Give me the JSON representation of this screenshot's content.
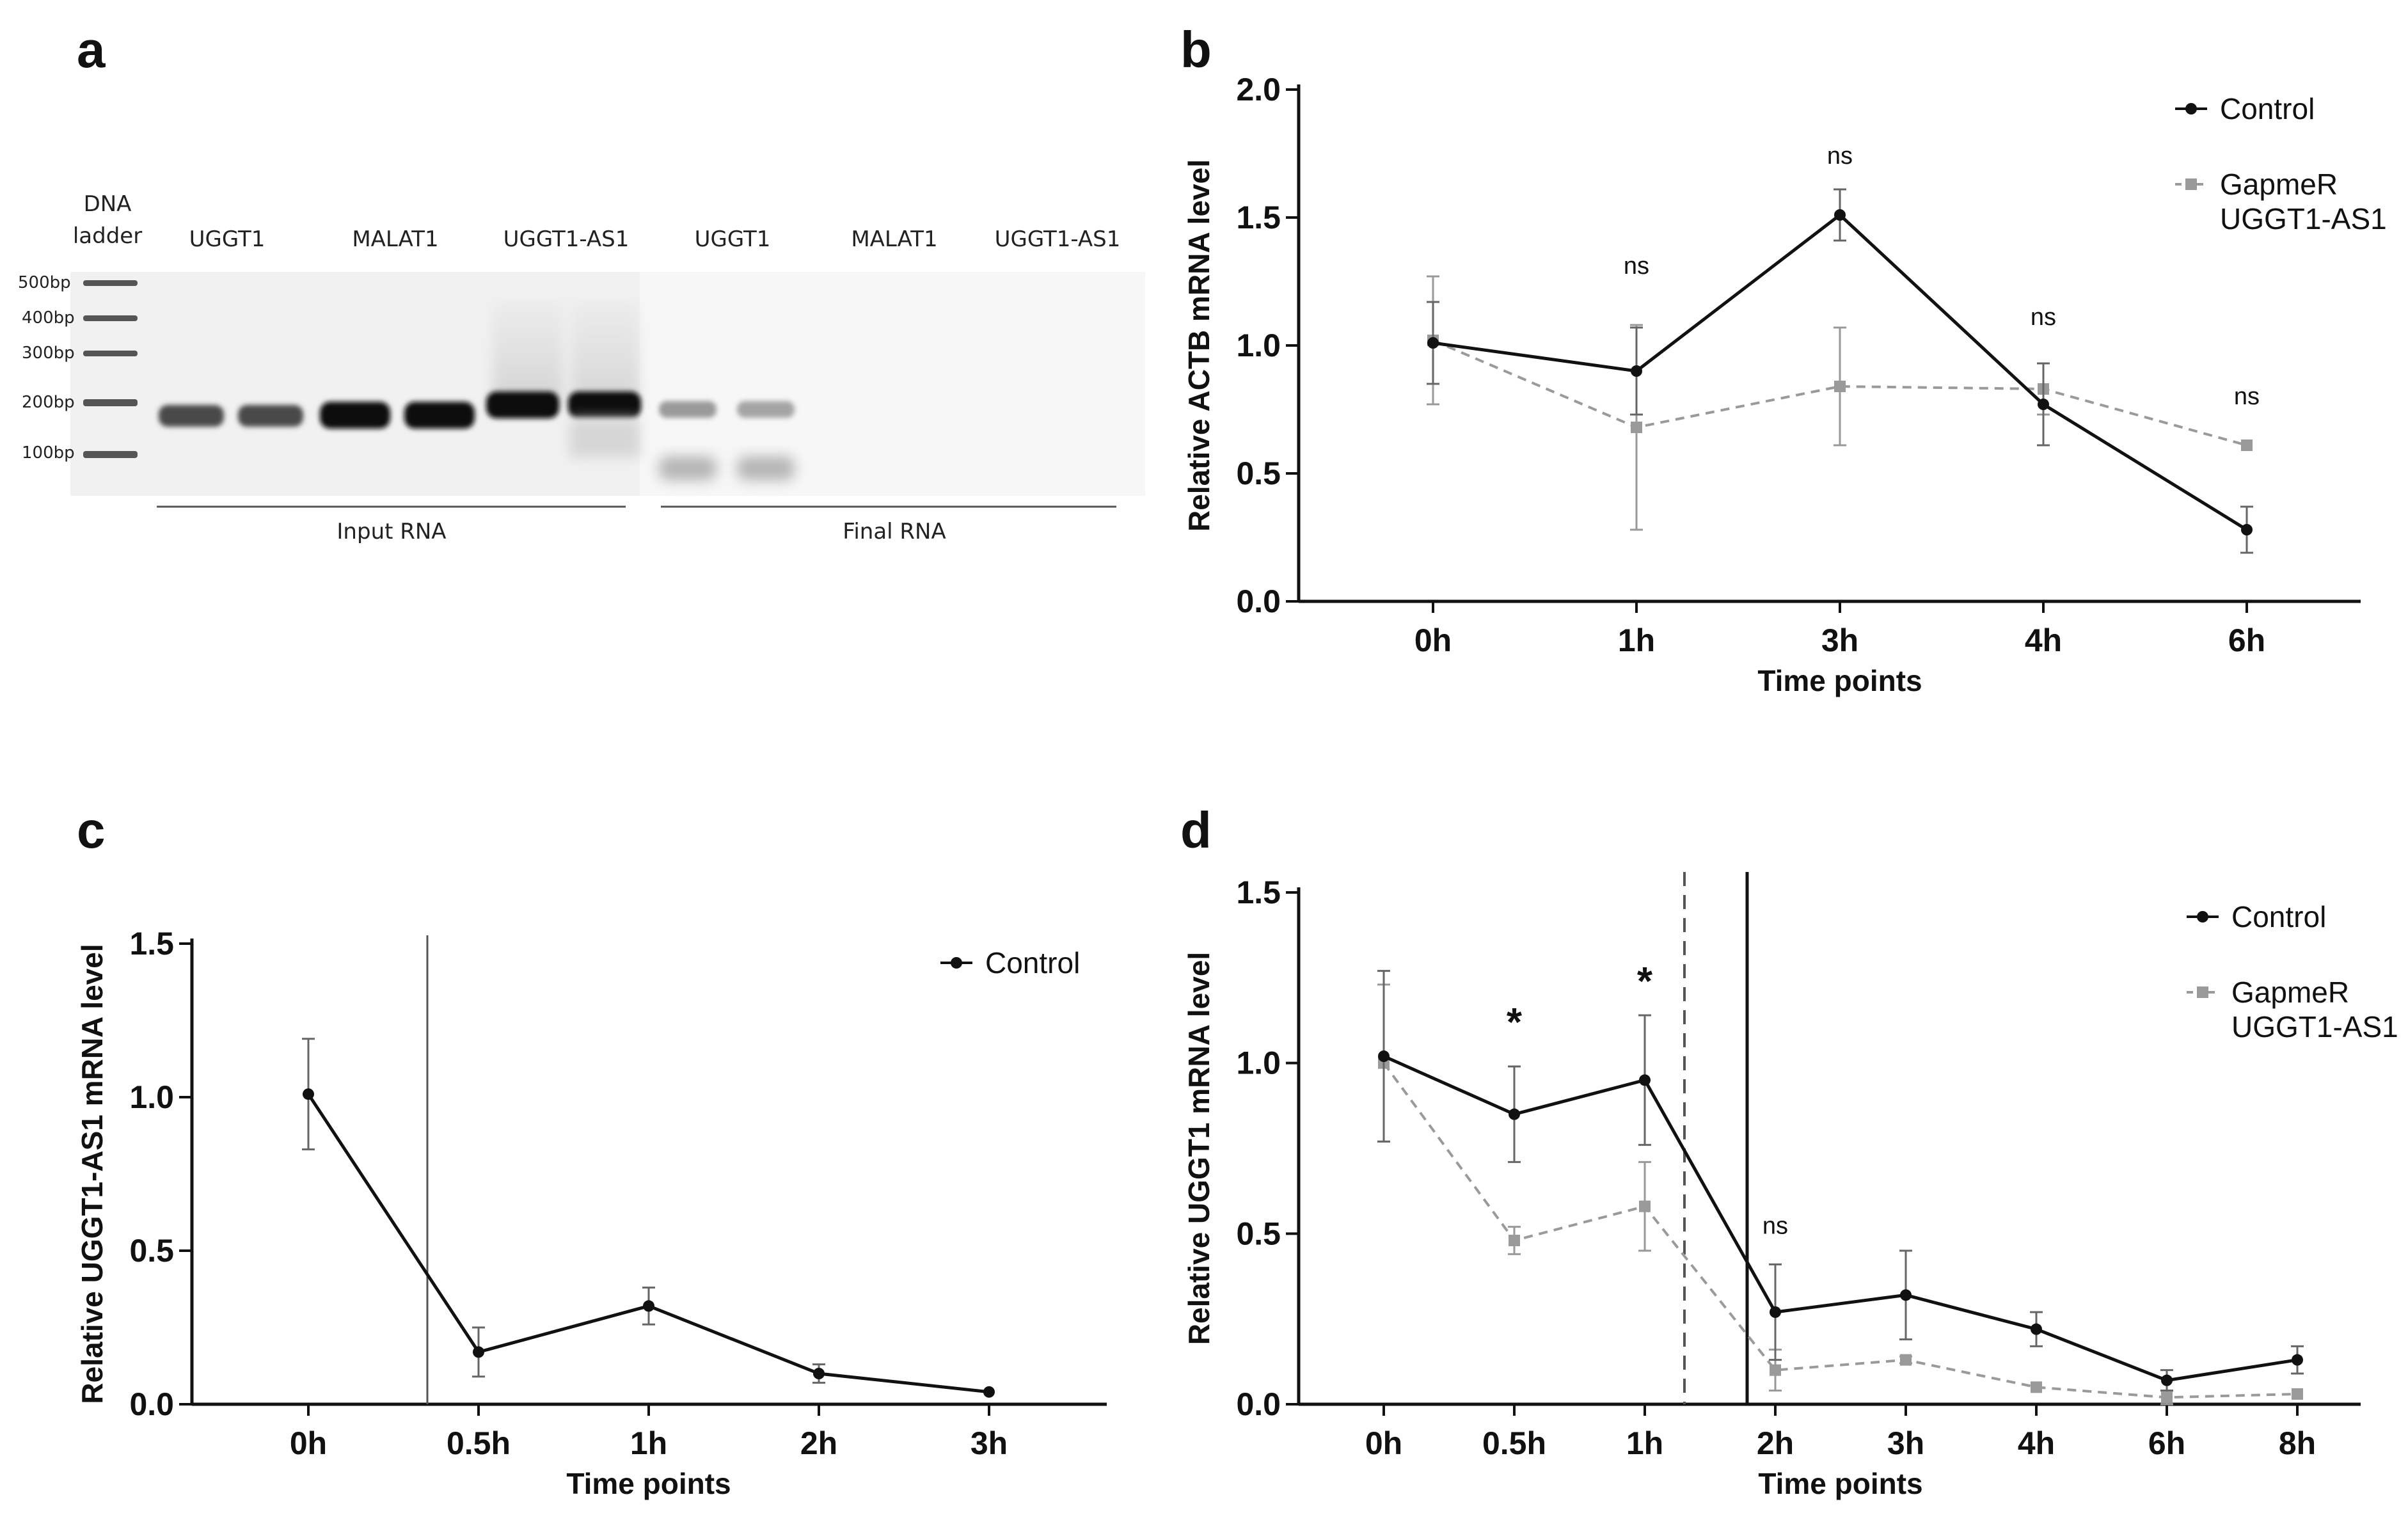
{
  "panel_a": {
    "letter": "a",
    "ladder_label_line1": "DNA",
    "ladder_label_line2": "ladder",
    "lane_labels": [
      "UGGT1",
      "MALAT1",
      "UGGT1-AS1",
      "UGGT1",
      "MALAT1",
      "UGGT1-AS1"
    ],
    "bp_labels": [
      "500bp",
      "400bp",
      "300bp",
      "200bp",
      "100bp"
    ],
    "group_labels": [
      "Input RNA",
      "Final RNA"
    ]
  },
  "chart_data": [
    {
      "panel": "b",
      "type": "line",
      "categories": [
        "0h",
        "1h",
        "3h",
        "4h",
        "6h"
      ],
      "xlabel": "Time points",
      "ylabel": "Relative ACTB mRNA level",
      "ylim": [
        0,
        2.0
      ],
      "yticks": [
        "0.0",
        "0.5",
        "1.0",
        "1.5",
        "2.0"
      ],
      "legend_placement": "top-right",
      "series": [
        {
          "name": "Control",
          "color": "#111111",
          "style": "solid",
          "marker": "circle",
          "values": [
            1.01,
            0.9,
            1.51,
            0.77,
            0.28
          ],
          "errors": [
            0.16,
            0.17,
            0.1,
            0.16,
            0.09
          ]
        },
        {
          "name": "GapmeR UGGT1-AS1",
          "color": "#9a9a9a",
          "style": "dashed",
          "marker": "square",
          "values": [
            1.02,
            0.68,
            0.84,
            0.83,
            0.61
          ],
          "errors": [
            0.25,
            0.4,
            0.23,
            0.1,
            0.0
          ]
        }
      ],
      "legend_lines": [
        [
          "Control"
        ],
        [
          "GapmeR",
          "UGGT1-AS1"
        ]
      ],
      "annotations": [
        {
          "category": "1h",
          "text": "ns",
          "y": 1.28
        },
        {
          "category": "3h",
          "text": "ns",
          "y": 1.71
        },
        {
          "category": "4h",
          "text": "ns",
          "y": 1.08
        },
        {
          "category": "6h",
          "text": "ns",
          "y": 0.77
        }
      ]
    },
    {
      "panel": "c",
      "type": "line",
      "categories": [
        "0h",
        "0.5h",
        "1h",
        "2h",
        "3h"
      ],
      "xlabel": "Time points",
      "ylabel": "Relative UGGT1-AS1 mRNA level",
      "ylim": [
        0,
        1.5
      ],
      "yticks": [
        "0.0",
        "0.5",
        "1.0",
        "1.5"
      ],
      "legend_placement": "top-right",
      "vertical_line_after": "0h",
      "series": [
        {
          "name": "Control",
          "color": "#111111",
          "style": "solid",
          "marker": "circle",
          "values": [
            1.01,
            0.17,
            0.32,
            0.1,
            0.04
          ],
          "errors": [
            0.18,
            0.08,
            0.06,
            0.03,
            0.0
          ]
        }
      ],
      "legend_lines": [
        [
          "Control"
        ]
      ],
      "annotations": []
    },
    {
      "panel": "d",
      "type": "line",
      "categories": [
        "0h",
        "0.5h",
        "1h",
        "2h",
        "3h",
        "4h",
        "6h",
        "8h"
      ],
      "xlabel": "Time points",
      "ylabel": "Relative UGGT1 mRNA level",
      "ylim": [
        0,
        1.5
      ],
      "yticks": [
        "0.0",
        "0.5",
        "1.0",
        "1.5"
      ],
      "legend_placement": "top-right",
      "series": [
        {
          "name": "Control",
          "color": "#111111",
          "style": "solid",
          "marker": "circle",
          "values": [
            1.02,
            0.85,
            0.95,
            0.27,
            0.32,
            0.22,
            0.07,
            0.13
          ],
          "errors": [
            0.25,
            0.14,
            0.19,
            0.14,
            0.13,
            0.05,
            0.03,
            0.04
          ]
        },
        {
          "name": "GapmeR UGGT1-AS1",
          "color": "#9a9a9a",
          "style": "dashed",
          "marker": "square",
          "values": [
            1.0,
            0.48,
            0.58,
            0.1,
            0.13,
            0.05,
            0.02,
            0.03
          ],
          "errors": [
            0.23,
            0.04,
            0.13,
            0.06,
            0.01,
            0.0,
            0.02,
            0.0
          ]
        }
      ],
      "legend_lines": [
        [
          "Control"
        ],
        [
          "GapmeR",
          "UGGT1-AS1"
        ]
      ],
      "annotations": [
        {
          "category": "0.5h",
          "text": "*",
          "y": 1.08,
          "bold": true
        },
        {
          "category": "1h",
          "text": "*",
          "y": 1.2,
          "bold": true
        },
        {
          "category": "2h",
          "text": "ns",
          "y": 0.5
        }
      ]
    }
  ]
}
